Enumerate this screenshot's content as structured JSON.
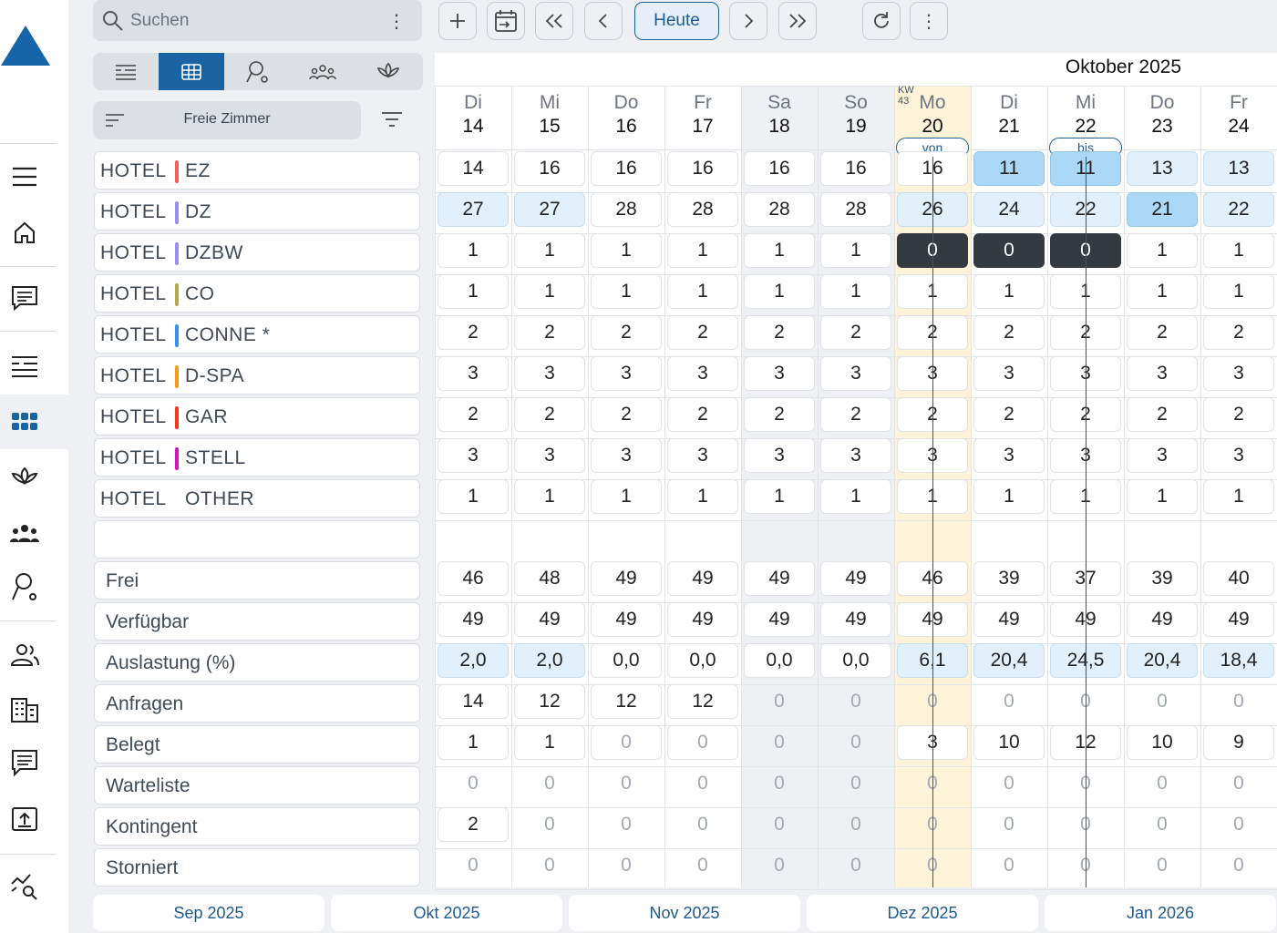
{
  "search": {
    "placeholder": "Suchen"
  },
  "toolbar": {
    "today_label": "Heute"
  },
  "filter": {
    "label": "Freie Zimmer"
  },
  "calendar": {
    "month_title": "Oktober 2025",
    "week_label": "KW",
    "week_number": "43",
    "from_label": "von",
    "to_label": "bis",
    "days": [
      {
        "dow": "Di",
        "num": "14"
      },
      {
        "dow": "Mi",
        "num": "15"
      },
      {
        "dow": "Do",
        "num": "16"
      },
      {
        "dow": "Fr",
        "num": "17"
      },
      {
        "dow": "Sa",
        "num": "18"
      },
      {
        "dow": "So",
        "num": "19"
      },
      {
        "dow": "Mo",
        "num": "20"
      },
      {
        "dow": "Di",
        "num": "21"
      },
      {
        "dow": "Mi",
        "num": "22"
      },
      {
        "dow": "Do",
        "num": "23"
      },
      {
        "dow": "Fr",
        "num": "24"
      }
    ]
  },
  "room_rows": [
    {
      "hotel": "HOTEL",
      "code": "EZ",
      "color": "#f0605e",
      "values": [
        "14",
        "16",
        "16",
        "16",
        "16",
        "16",
        "16",
        "11",
        "11",
        "13",
        "13"
      ],
      "styles": [
        "",
        "",
        "",
        "",
        "",
        "",
        "",
        "mb",
        "mb",
        "lb",
        "lb"
      ]
    },
    {
      "hotel": "HOTEL",
      "code": "DZ",
      "color": "#9b8ef0",
      "values": [
        "27",
        "27",
        "28",
        "28",
        "28",
        "28",
        "26",
        "24",
        "22",
        "21",
        "22"
      ],
      "styles": [
        "lb",
        "lb",
        "",
        "",
        "",
        "",
        "lb",
        "lb",
        "lb",
        "mb",
        "lb"
      ]
    },
    {
      "hotel": "HOTEL",
      "code": "DZBW",
      "color": "#9b8ef0",
      "values": [
        "1",
        "1",
        "1",
        "1",
        "1",
        "1",
        "0",
        "0",
        "0",
        "1",
        "1"
      ],
      "styles": [
        "",
        "",
        "",
        "",
        "",
        "",
        "dk",
        "dk",
        "dk",
        "",
        ""
      ]
    },
    {
      "hotel": "HOTEL",
      "code": "CO",
      "color": "#b4a94a",
      "values": [
        "1",
        "1",
        "1",
        "1",
        "1",
        "1",
        "1",
        "1",
        "1",
        "1",
        "1"
      ],
      "styles": [
        "",
        "",
        "",
        "",
        "",
        "",
        "",
        "",
        "",
        "",
        ""
      ]
    },
    {
      "hotel": "HOTEL",
      "code": "CONNE *",
      "color": "#3a8fe8",
      "values": [
        "2",
        "2",
        "2",
        "2",
        "2",
        "2",
        "2",
        "2",
        "2",
        "2",
        "2"
      ],
      "styles": [
        "",
        "",
        "",
        "",
        "",
        "",
        "",
        "",
        "",
        "",
        ""
      ]
    },
    {
      "hotel": "HOTEL",
      "code": "D-SPA",
      "color": "#f59a1a",
      "values": [
        "3",
        "3",
        "3",
        "3",
        "3",
        "3",
        "3",
        "3",
        "3",
        "3",
        "3"
      ],
      "styles": [
        "",
        "",
        "",
        "",
        "",
        "",
        "",
        "",
        "",
        "",
        ""
      ]
    },
    {
      "hotel": "HOTEL",
      "code": "GAR",
      "color": "#f03a1a",
      "values": [
        "2",
        "2",
        "2",
        "2",
        "2",
        "2",
        "2",
        "2",
        "2",
        "2",
        "2"
      ],
      "styles": [
        "",
        "",
        "",
        "",
        "",
        "",
        "",
        "",
        "",
        "",
        ""
      ]
    },
    {
      "hotel": "HOTEL",
      "code": "STELL",
      "color": "#d018b8",
      "values": [
        "3",
        "3",
        "3",
        "3",
        "3",
        "3",
        "3",
        "3",
        "3",
        "3",
        "3"
      ],
      "styles": [
        "",
        "",
        "",
        "",
        "",
        "",
        "",
        "",
        "",
        "",
        ""
      ]
    },
    {
      "hotel": "HOTEL",
      "code": "OTHER",
      "color": "",
      "values": [
        "1",
        "1",
        "1",
        "1",
        "1",
        "1",
        "1",
        "1",
        "1",
        "1",
        "1"
      ],
      "styles": [
        "",
        "",
        "",
        "",
        "",
        "",
        "",
        "",
        "",
        "",
        ""
      ]
    }
  ],
  "summary_rows": [
    {
      "label": "Frei",
      "values": [
        "46",
        "48",
        "49",
        "49",
        "49",
        "49",
        "46",
        "39",
        "37",
        "39",
        "40"
      ],
      "styles": [
        "",
        "",
        "",
        "",
        "",
        "",
        "",
        "",
        "",
        "",
        ""
      ]
    },
    {
      "label": "Verfügbar",
      "values": [
        "49",
        "49",
        "49",
        "49",
        "49",
        "49",
        "49",
        "49",
        "49",
        "49",
        "49"
      ],
      "styles": [
        "",
        "",
        "",
        "",
        "",
        "",
        "",
        "",
        "",
        "",
        ""
      ]
    },
    {
      "label": "Auslastung (%)",
      "values": [
        "2,0",
        "2,0",
        "0,0",
        "0,0",
        "0,0",
        "0,0",
        "6,1",
        "20,4",
        "24,5",
        "20,4",
        "18,4"
      ],
      "styles": [
        "lb",
        "lb",
        "",
        "",
        "",
        "",
        "lb",
        "lb",
        "lb",
        "lb",
        "lb"
      ]
    },
    {
      "label": "Anfragen",
      "values": [
        "14",
        "12",
        "12",
        "12",
        "0",
        "0",
        "0",
        "0",
        "0",
        "0",
        "0"
      ],
      "styles": [
        "",
        "",
        "",
        "",
        "g",
        "g",
        "g",
        "g",
        "g",
        "g",
        "g"
      ]
    },
    {
      "label": "Belegt",
      "values": [
        "1",
        "1",
        "0",
        "0",
        "0",
        "0",
        "3",
        "10",
        "12",
        "10",
        "9"
      ],
      "styles": [
        "",
        "",
        "gw",
        "gw",
        "g",
        "g",
        "",
        "",
        "",
        "",
        ""
      ]
    },
    {
      "label": "Warteliste",
      "values": [
        "0",
        "0",
        "0",
        "0",
        "0",
        "0",
        "0",
        "0",
        "0",
        "0",
        "0"
      ],
      "styles": [
        "g",
        "g",
        "g",
        "g",
        "g",
        "g",
        "g",
        "g",
        "g",
        "g",
        "g"
      ]
    },
    {
      "label": "Kontingent",
      "values": [
        "2",
        "0",
        "0",
        "0",
        "0",
        "0",
        "0",
        "0",
        "0",
        "0",
        "0"
      ],
      "styles": [
        "",
        "g",
        "g",
        "g",
        "g",
        "g",
        "g",
        "g",
        "g",
        "g",
        "g"
      ]
    },
    {
      "label": "Storniert",
      "values": [
        "0",
        "0",
        "0",
        "0",
        "0",
        "0",
        "0",
        "0",
        "0",
        "0",
        "0"
      ],
      "styles": [
        "g",
        "g",
        "g",
        "g",
        "g",
        "g",
        "g",
        "g",
        "g",
        "g",
        "g"
      ]
    }
  ],
  "month_nav": [
    "Sep 2025",
    "Okt 2025",
    "Nov 2025",
    "Dez 2025",
    "Jan 2026"
  ],
  "colors": {
    "accent": "#1a63a3",
    "weekend": "#eef0f3",
    "today": "#fdf3d8",
    "light_blue": "#e1f0fb",
    "mid_blue": "#acd8f7",
    "dark": "#343a40"
  }
}
